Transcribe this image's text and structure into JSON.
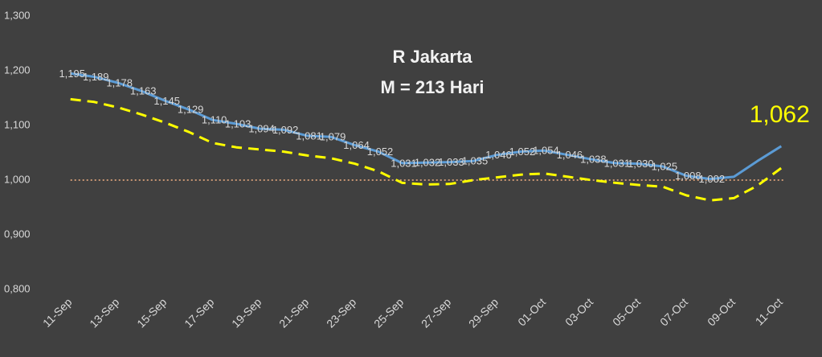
{
  "chart_data": {
    "type": "line",
    "title": "R Jakarta",
    "subtitle": "M = 213 Hari",
    "categories": [
      "11-Sep",
      null,
      "13-Sep",
      null,
      "15-Sep",
      null,
      "17-Sep",
      null,
      "19-Sep",
      null,
      "21-Sep",
      null,
      "23-Sep",
      null,
      "25-Sep",
      null,
      "27-Sep",
      null,
      "29-Sep",
      null,
      "01-Oct",
      null,
      "03-Oct",
      null,
      "05-Oct",
      null,
      "07-Oct",
      null,
      "09-Oct",
      null,
      "11-Oct"
    ],
    "series": [
      {
        "color": "#5b9bd5",
        "dashed": false,
        "values": [
          1.195,
          1.189,
          1.178,
          1.163,
          1.145,
          1.129,
          1.11,
          1.103,
          1.094,
          1.092,
          1.081,
          1.079,
          1.064,
          1.052,
          1.031,
          1.032,
          1.033,
          1.035,
          1.046,
          1.052,
          1.054,
          1.046,
          1.038,
          1.031,
          1.03,
          1.025,
          1.008,
          1.002,
          1.006,
          1.035,
          1.062
        ],
        "value_labels": [
          "1,195",
          "1,189",
          "1,178",
          "1,163",
          "1,145",
          "1,129",
          "1,110",
          "1,103",
          "1,094",
          "1,092",
          "1,081",
          "1,079",
          "1,064",
          "1,052",
          "1,031",
          "1,032",
          "1,033",
          "1,035",
          "1,046",
          "1,052",
          "1,054",
          "1,046",
          "1,038",
          "1,031",
          "1,030",
          "1,025",
          "1,008",
          "1,002",
          null,
          null,
          "1,062"
        ]
      },
      {
        "color": "#ffff00",
        "dashed": true,
        "values": [
          1.148,
          1.143,
          1.133,
          1.12,
          1.105,
          1.088,
          1.068,
          1.06,
          1.056,
          1.052,
          1.045,
          1.04,
          1.03,
          1.016,
          0.995,
          0.992,
          0.993,
          1.0,
          1.005,
          1.01,
          1.012,
          1.006,
          1.0,
          0.995,
          0.991,
          0.988,
          0.972,
          0.963,
          0.967,
          0.99,
          1.022
        ]
      }
    ],
    "ylim": [
      0.8,
      1.3
    ],
    "yticks": [
      {
        "value": 0.8,
        "label": "0,800"
      },
      {
        "value": 0.9,
        "label": "0,900"
      },
      {
        "value": 1.0,
        "label": "1,000"
      },
      {
        "value": 1.1,
        "label": "1,100"
      },
      {
        "value": 1.2,
        "label": "1,200"
      },
      {
        "value": 1.3,
        "label": "1,300"
      }
    ],
    "grid": false,
    "hline": {
      "value": 1.0,
      "color": "#f4b183"
    }
  }
}
